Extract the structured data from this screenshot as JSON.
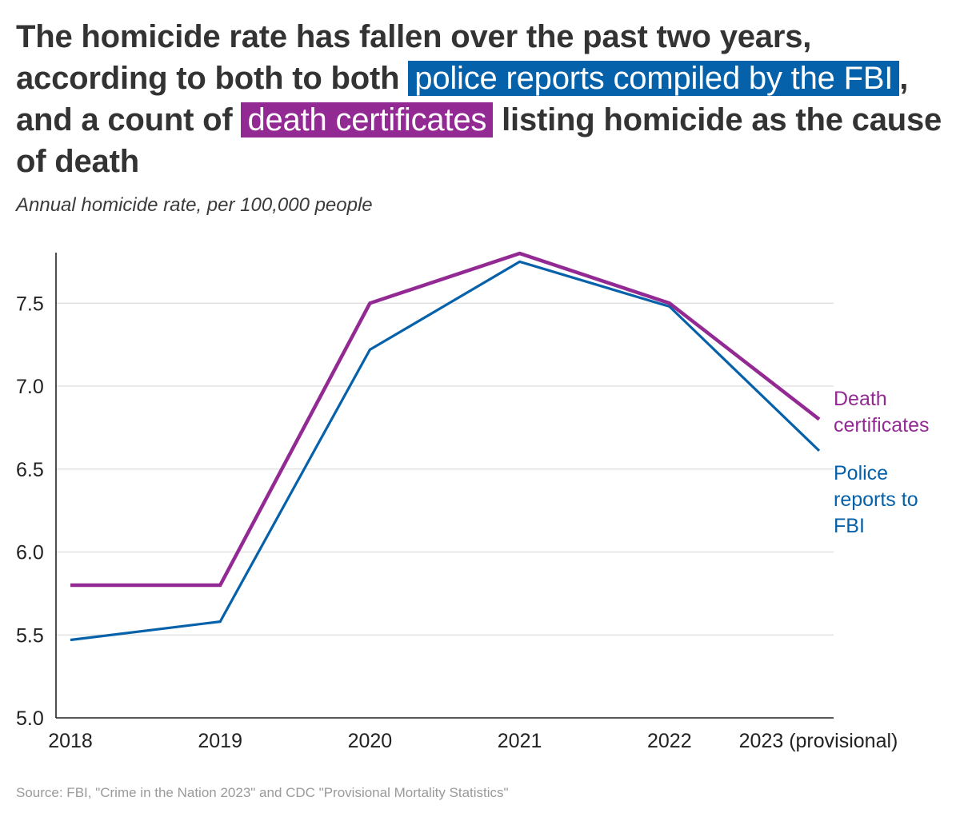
{
  "header": {
    "title_part1": "The homicide rate has fallen over the past two years, according to both to both ",
    "highlight_police": "police reports compiled by the FBI",
    "title_part2": ", and a count of ",
    "highlight_death": "death certificates",
    "title_part3": " listing homicide as the cause of death",
    "subtitle": "Annual homicide rate, per 100,000 people"
  },
  "colors": {
    "police": "#0561a9",
    "death": "#932a94",
    "grid": "#dddddd",
    "axis": "#222222"
  },
  "chart_data": {
    "type": "line",
    "title": "The homicide rate has fallen over the past two years, according to both to both police reports compiled by the FBI, and a count of death certificates listing homicide as the cause of death",
    "subtitle": "Annual homicide rate, per 100,000 people",
    "categories": [
      "2018",
      "2019",
      "2020",
      "2021",
      "2022",
      "2023 (provisional)"
    ],
    "yticks": [
      "5.0",
      "5.5",
      "6.0",
      "6.5",
      "7.0",
      "7.5"
    ],
    "ylim": [
      5.0,
      7.8
    ],
    "grid": true,
    "legend": "direct labels at right end of lines",
    "series": [
      {
        "name": "Death certificates",
        "label_lines": [
          "Death",
          "certificates"
        ],
        "values": [
          5.8,
          5.8,
          7.5,
          7.8,
          7.5,
          6.8
        ]
      },
      {
        "name": "Police reports to FBI",
        "label_lines": [
          "Police",
          "reports to",
          "FBI"
        ],
        "values": [
          5.47,
          5.58,
          7.22,
          7.75,
          7.48,
          6.61
        ]
      }
    ]
  },
  "footer": {
    "source": "Source: FBI, \"Crime in the Nation 2023\" and CDC \"Provisional Mortality Statistics\""
  }
}
